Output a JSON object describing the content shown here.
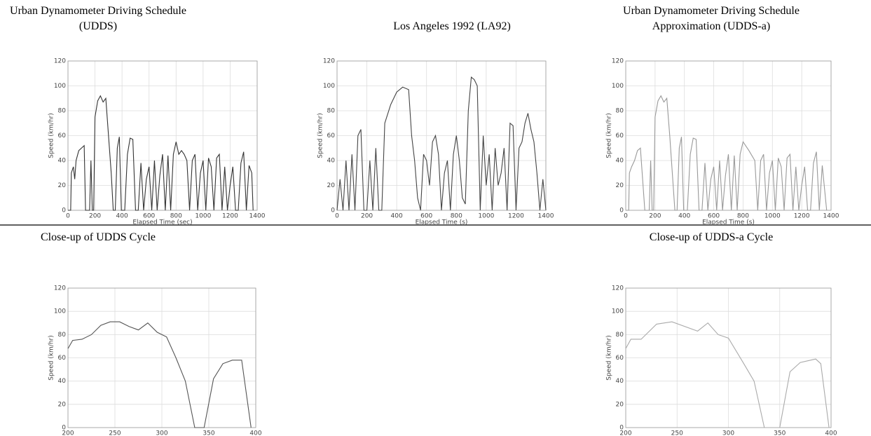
{
  "chart_data": [
    {
      "type": "line",
      "title": [
        "Urban Dynamometer Driving Schedule",
        "(UDDS)"
      ],
      "xlabel": "Elapsed Time (sec)",
      "ylabel": "Speed (km/hr)",
      "color": "#333333",
      "grid": true,
      "xlim": [
        0,
        1400
      ],
      "ylim": [
        0,
        120
      ],
      "xticks": [
        0,
        200,
        400,
        600,
        800,
        1000,
        1200,
        1400
      ],
      "yticks": [
        0,
        20,
        40,
        60,
        80,
        100,
        120
      ],
      "x": [
        0,
        20,
        25,
        40,
        50,
        60,
        80,
        100,
        120,
        130,
        160,
        170,
        180,
        190,
        200,
        220,
        240,
        260,
        280,
        300,
        320,
        335,
        350,
        365,
        380,
        395,
        420,
        440,
        460,
        480,
        500,
        520,
        540,
        560,
        580,
        600,
        620,
        640,
        660,
        680,
        700,
        720,
        740,
        760,
        780,
        800,
        820,
        840,
        860,
        880,
        900,
        920,
        940,
        960,
        980,
        1000,
        1020,
        1040,
        1060,
        1080,
        1100,
        1120,
        1140,
        1160,
        1180,
        1200,
        1220,
        1240,
        1260,
        1280,
        1300,
        1320,
        1340,
        1360,
        1370
      ],
      "values": [
        0,
        0,
        30,
        35,
        25,
        40,
        48,
        50,
        52,
        0,
        0,
        40,
        0,
        0,
        75,
        88,
        92,
        87,
        90,
        60,
        30,
        0,
        0,
        50,
        59,
        0,
        0,
        45,
        58,
        57,
        0,
        0,
        38,
        0,
        25,
        35,
        0,
        40,
        0,
        28,
        45,
        0,
        44,
        0,
        45,
        55,
        45,
        48,
        45,
        40,
        0,
        40,
        45,
        0,
        30,
        40,
        0,
        42,
        35,
        0,
        42,
        45,
        0,
        35,
        0,
        20,
        35,
        0,
        0,
        38,
        47,
        0,
        36,
        30,
        0
      ]
    },
    {
      "type": "line",
      "title": [
        "Los Angeles 1992 (LA92)"
      ],
      "xlabel": "Elapsed Time (s)",
      "ylabel": "Speed (km/hr)",
      "color": "#444444",
      "grid": true,
      "xlim": [
        0,
        1400
      ],
      "ylim": [
        0,
        120
      ],
      "xticks": [
        0,
        200,
        400,
        600,
        800,
        1000,
        1200,
        1400
      ],
      "yticks": [
        0,
        20,
        40,
        60,
        80,
        100,
        120
      ],
      "x": [
        0,
        20,
        40,
        60,
        80,
        100,
        120,
        140,
        160,
        180,
        200,
        220,
        240,
        260,
        280,
        300,
        320,
        360,
        400,
        440,
        480,
        500,
        520,
        540,
        560,
        580,
        600,
        620,
        640,
        660,
        680,
        700,
        720,
        740,
        760,
        780,
        800,
        820,
        840,
        860,
        880,
        900,
        920,
        940,
        960,
        980,
        1000,
        1020,
        1040,
        1060,
        1080,
        1100,
        1120,
        1140,
        1160,
        1180,
        1200,
        1220,
        1240,
        1260,
        1280,
        1300,
        1320,
        1340,
        1360,
        1380,
        1400
      ],
      "values": [
        0,
        25,
        0,
        40,
        0,
        45,
        0,
        60,
        65,
        0,
        0,
        40,
        0,
        50,
        0,
        0,
        70,
        85,
        95,
        99,
        97,
        60,
        40,
        10,
        0,
        45,
        40,
        20,
        55,
        60,
        45,
        0,
        30,
        40,
        0,
        45,
        60,
        40,
        10,
        5,
        80,
        107,
        105,
        100,
        0,
        60,
        20,
        45,
        0,
        50,
        20,
        30,
        50,
        0,
        70,
        68,
        0,
        50,
        55,
        70,
        78,
        65,
        55,
        30,
        0,
        25,
        0
      ]
    },
    {
      "type": "line",
      "title": [
        "Urban Dynamometer Driving Schedule",
        "Approximation (UDDS-a)"
      ],
      "xlabel": "Elapsed Time (s)",
      "ylabel": "Speed (km/hr)",
      "color": "#999999",
      "grid": true,
      "xlim": [
        0,
        1400
      ],
      "ylim": [
        0,
        120
      ],
      "xticks": [
        0,
        200,
        400,
        600,
        800,
        1000,
        1200,
        1400
      ],
      "yticks": [
        0,
        20,
        40,
        60,
        80,
        100,
        120
      ],
      "x": [
        0,
        20,
        25,
        40,
        60,
        80,
        100,
        130,
        160,
        170,
        180,
        190,
        200,
        220,
        240,
        260,
        280,
        300,
        335,
        350,
        365,
        380,
        395,
        420,
        440,
        460,
        480,
        500,
        520,
        540,
        560,
        580,
        600,
        620,
        640,
        660,
        680,
        700,
        720,
        740,
        760,
        780,
        800,
        840,
        880,
        900,
        920,
        940,
        960,
        980,
        1000,
        1020,
        1040,
        1060,
        1080,
        1100,
        1120,
        1140,
        1160,
        1180,
        1200,
        1220,
        1240,
        1260,
        1280,
        1300,
        1320,
        1340,
        1370
      ],
      "values": [
        0,
        0,
        30,
        35,
        40,
        48,
        50,
        0,
        0,
        40,
        0,
        0,
        75,
        88,
        92,
        87,
        90,
        60,
        0,
        0,
        50,
        59,
        0,
        0,
        45,
        58,
        57,
        0,
        0,
        38,
        0,
        25,
        35,
        0,
        40,
        0,
        28,
        45,
        0,
        44,
        0,
        45,
        55,
        48,
        40,
        0,
        40,
        45,
        0,
        30,
        40,
        0,
        42,
        35,
        0,
        42,
        45,
        0,
        35,
        0,
        20,
        35,
        0,
        0,
        38,
        47,
        0,
        36,
        0
      ]
    },
    {
      "type": "line",
      "title": [
        "Close-up of UDDS Cycle"
      ],
      "xlabel": "Elapsed Time (s)",
      "ylabel": "Speed (km/hr)",
      "color": "#555555",
      "grid": true,
      "xlim": [
        200,
        400
      ],
      "ylim": [
        0,
        120
      ],
      "xticks": [
        200,
        250,
        300,
        350,
        400
      ],
      "yticks": [
        0,
        20,
        40,
        60,
        80,
        100,
        120
      ],
      "x": [
        200,
        205,
        215,
        225,
        235,
        245,
        255,
        265,
        275,
        285,
        295,
        305,
        315,
        325,
        335,
        345,
        355,
        365,
        375,
        385,
        395
      ],
      "values": [
        68,
        75,
        76,
        80,
        88,
        91,
        91,
        87,
        84,
        90,
        82,
        78,
        60,
        40,
        0,
        0,
        42,
        55,
        58,
        58,
        0
      ]
    },
    {
      "type": "line",
      "title": [
        "Close-up of UDDS-a Cycle"
      ],
      "xlabel": "Elapsed Time (s)",
      "ylabel": "Speed (km/hr)",
      "color": "#aaaaaa",
      "grid": true,
      "xlim": [
        200,
        400
      ],
      "ylim": [
        0,
        120
      ],
      "xticks": [
        200,
        250,
        300,
        350,
        400
      ],
      "yticks": [
        0,
        20,
        40,
        60,
        80,
        100,
        120
      ],
      "x": [
        200,
        205,
        215,
        230,
        245,
        270,
        280,
        290,
        300,
        315,
        325,
        335,
        350,
        360,
        370,
        385,
        390,
        398
      ],
      "values": [
        68,
        76,
        76,
        89,
        91,
        83,
        90,
        80,
        77,
        55,
        40,
        0,
        0,
        48,
        56,
        59,
        55,
        0
      ]
    }
  ]
}
